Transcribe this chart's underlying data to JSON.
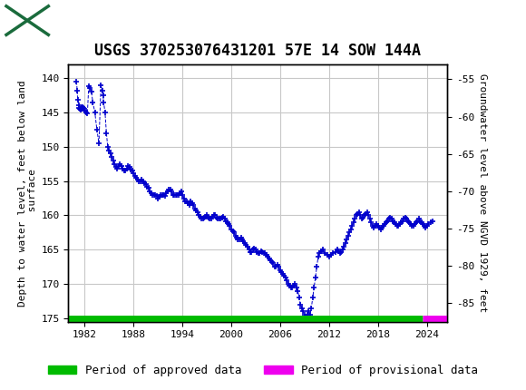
{
  "title": "USGS 370253076431201 57E 14 SOW 144A",
  "ylabel_left": "Depth to water level, feet below land\n surface",
  "ylabel_right": "Groundwater level above NGVD 1929, feet",
  "ylim_left": [
    175.5,
    138.0
  ],
  "ylim_right": [
    -87.5,
    -53.0
  ],
  "xlim": [
    1980.0,
    2026.5
  ],
  "yticks_left": [
    140,
    145,
    150,
    155,
    160,
    165,
    170,
    175
  ],
  "yticks_right": [
    -55,
    -60,
    -65,
    -70,
    -75,
    -80,
    -85
  ],
  "xticks": [
    1982,
    1988,
    1994,
    2000,
    2006,
    2012,
    2018,
    2024
  ],
  "header_color": "#1a6b3c",
  "data_color": "#0000cc",
  "grid_color": "#c8c8c8",
  "approved_color": "#00bb00",
  "provisional_color": "#ee00ee",
  "background_color": "#ffffff",
  "line_style": "--",
  "marker": "+",
  "marker_size": 5,
  "line_width": 0.7,
  "title_fontsize": 12,
  "label_fontsize": 8,
  "tick_fontsize": 8,
  "legend_fontsize": 9,
  "data_x": [
    1981.0,
    1981.08,
    1981.17,
    1981.25,
    1981.33,
    1981.42,
    1981.5,
    1981.58,
    1981.67,
    1981.75,
    1981.83,
    1981.92,
    1982.0,
    1982.17,
    1982.33,
    1982.5,
    1982.67,
    1982.83,
    1983.0,
    1983.25,
    1983.5,
    1983.75,
    1984.0,
    1984.17,
    1984.25,
    1984.33,
    1984.5,
    1984.67,
    1984.83,
    1985.0,
    1985.17,
    1985.33,
    1985.5,
    1985.67,
    1985.83,
    1986.0,
    1986.17,
    1986.33,
    1986.5,
    1986.67,
    1986.83,
    1987.0,
    1987.17,
    1987.33,
    1987.5,
    1987.67,
    1987.83,
    1988.0,
    1988.17,
    1988.33,
    1988.5,
    1988.67,
    1988.83,
    1989.0,
    1989.17,
    1989.33,
    1989.5,
    1989.67,
    1989.83,
    1990.0,
    1990.17,
    1990.33,
    1990.5,
    1990.67,
    1990.83,
    1991.0,
    1991.17,
    1991.33,
    1991.5,
    1991.67,
    1991.83,
    1992.0,
    1992.17,
    1992.33,
    1992.5,
    1992.67,
    1992.83,
    1993.0,
    1993.17,
    1993.33,
    1993.5,
    1993.67,
    1993.83,
    1994.0,
    1994.17,
    1994.33,
    1994.5,
    1994.67,
    1994.83,
    1995.0,
    1995.17,
    1995.33,
    1995.5,
    1995.67,
    1995.83,
    1996.0,
    1996.17,
    1996.33,
    1996.5,
    1996.67,
    1996.83,
    1997.0,
    1997.17,
    1997.33,
    1997.5,
    1997.67,
    1997.83,
    1998.0,
    1998.17,
    1998.33,
    1998.5,
    1998.67,
    1998.83,
    1999.0,
    1999.17,
    1999.33,
    1999.5,
    1999.67,
    1999.83,
    2000.0,
    2000.17,
    2000.33,
    2000.5,
    2000.67,
    2000.83,
    2001.0,
    2001.17,
    2001.33,
    2001.5,
    2001.67,
    2001.83,
    2002.0,
    2002.17,
    2002.33,
    2002.5,
    2002.67,
    2002.83,
    2003.0,
    2003.17,
    2003.33,
    2003.5,
    2003.67,
    2003.83,
    2004.0,
    2004.17,
    2004.33,
    2004.5,
    2004.67,
    2004.83,
    2005.0,
    2005.17,
    2005.33,
    2005.5,
    2005.67,
    2005.83,
    2006.0,
    2006.17,
    2006.33,
    2006.5,
    2006.67,
    2006.83,
    2007.0,
    2007.17,
    2007.33,
    2007.5,
    2007.67,
    2007.83,
    2008.0,
    2008.17,
    2008.33,
    2008.5,
    2008.67,
    2008.83,
    2009.0,
    2009.17,
    2009.33,
    2009.5,
    2009.67,
    2009.83,
    2010.0,
    2010.17,
    2010.33,
    2010.5,
    2010.67,
    2010.83,
    2011.0,
    2011.25,
    2011.5,
    2011.75,
    2012.0,
    2012.25,
    2012.5,
    2012.75,
    2013.0,
    2013.17,
    2013.33,
    2013.5,
    2013.67,
    2013.83,
    2014.0,
    2014.17,
    2014.33,
    2014.5,
    2014.67,
    2014.83,
    2015.0,
    2015.17,
    2015.33,
    2015.5,
    2015.67,
    2015.83,
    2016.0,
    2016.17,
    2016.33,
    2016.5,
    2016.67,
    2016.83,
    2017.0,
    2017.17,
    2017.33,
    2017.5,
    2017.67,
    2017.83,
    2018.0,
    2018.17,
    2018.33,
    2018.5,
    2018.67,
    2018.83,
    2019.0,
    2019.17,
    2019.33,
    2019.5,
    2019.67,
    2019.83,
    2020.0,
    2020.17,
    2020.33,
    2020.5,
    2020.67,
    2020.83,
    2021.0,
    2021.17,
    2021.33,
    2021.5,
    2021.67,
    2021.83,
    2022.0,
    2022.17,
    2022.33,
    2022.5,
    2022.67,
    2022.83,
    2023.0,
    2023.17,
    2023.33,
    2023.5,
    2023.67,
    2023.83,
    2024.0,
    2024.17,
    2024.5,
    2024.75
  ],
  "data_y": [
    140.5,
    141.8,
    143.2,
    144.0,
    144.3,
    144.5,
    144.6,
    144.5,
    144.4,
    144.2,
    144.3,
    144.5,
    144.8,
    145.0,
    145.2,
    141.2,
    141.5,
    142.0,
    143.5,
    145.0,
    147.5,
    149.5,
    141.0,
    141.8,
    142.5,
    143.5,
    145.0,
    148.0,
    150.0,
    150.5,
    151.0,
    151.5,
    152.0,
    152.5,
    153.0,
    153.2,
    152.8,
    152.5,
    152.8,
    153.2,
    153.5,
    153.5,
    153.2,
    152.8,
    153.0,
    153.3,
    153.5,
    153.8,
    154.2,
    154.5,
    154.8,
    155.0,
    155.0,
    154.8,
    155.0,
    155.3,
    155.5,
    155.8,
    156.0,
    156.5,
    156.8,
    157.0,
    157.0,
    157.0,
    157.2,
    157.5,
    157.3,
    157.0,
    157.0,
    157.0,
    157.2,
    156.8,
    156.5,
    156.3,
    156.2,
    156.5,
    157.0,
    157.0,
    157.0,
    157.0,
    157.0,
    156.8,
    156.5,
    157.0,
    157.5,
    158.0,
    158.0,
    158.2,
    158.5,
    158.0,
    158.2,
    158.5,
    159.0,
    159.3,
    159.5,
    160.0,
    160.2,
    160.5,
    160.5,
    160.3,
    160.2,
    160.0,
    160.3,
    160.5,
    160.5,
    160.2,
    160.0,
    160.0,
    160.3,
    160.5,
    160.5,
    160.5,
    160.3,
    160.2,
    160.5,
    160.8,
    161.0,
    161.2,
    161.5,
    162.0,
    162.3,
    162.5,
    163.0,
    163.2,
    163.5,
    163.5,
    163.2,
    163.5,
    163.8,
    164.0,
    164.3,
    164.5,
    165.0,
    165.3,
    165.3,
    165.0,
    164.8,
    165.0,
    165.3,
    165.5,
    165.5,
    165.2,
    165.3,
    165.5,
    165.5,
    165.8,
    166.0,
    166.3,
    166.5,
    166.8,
    167.0,
    167.5,
    167.5,
    167.2,
    167.5,
    168.0,
    168.3,
    168.5,
    168.8,
    169.0,
    169.5,
    170.0,
    170.3,
    170.5,
    170.5,
    170.3,
    170.0,
    170.5,
    171.0,
    172.0,
    173.0,
    173.5,
    174.0,
    174.5,
    174.8,
    174.5,
    174.0,
    174.5,
    173.5,
    172.0,
    170.5,
    169.0,
    167.5,
    166.0,
    165.5,
    165.2,
    165.0,
    165.5,
    165.8,
    166.0,
    165.8,
    165.5,
    165.3,
    165.0,
    165.2,
    165.5,
    165.3,
    165.0,
    164.5,
    164.0,
    163.5,
    163.0,
    162.5,
    162.0,
    161.5,
    161.0,
    160.5,
    160.0,
    159.8,
    159.5,
    160.0,
    160.5,
    160.3,
    160.0,
    159.8,
    159.5,
    160.0,
    160.5,
    161.0,
    161.5,
    161.8,
    161.5,
    161.3,
    161.5,
    161.8,
    162.0,
    161.8,
    161.5,
    161.3,
    161.0,
    160.8,
    160.5,
    160.3,
    160.5,
    160.8,
    161.0,
    161.3,
    161.5,
    161.5,
    161.2,
    161.0,
    160.8,
    160.5,
    160.3,
    160.5,
    160.8,
    161.0,
    161.2,
    161.5,
    161.5,
    161.3,
    161.0,
    160.8,
    160.5,
    160.8,
    161.0,
    161.2,
    161.5,
    161.8,
    161.5,
    161.2,
    161.0,
    160.8
  ]
}
